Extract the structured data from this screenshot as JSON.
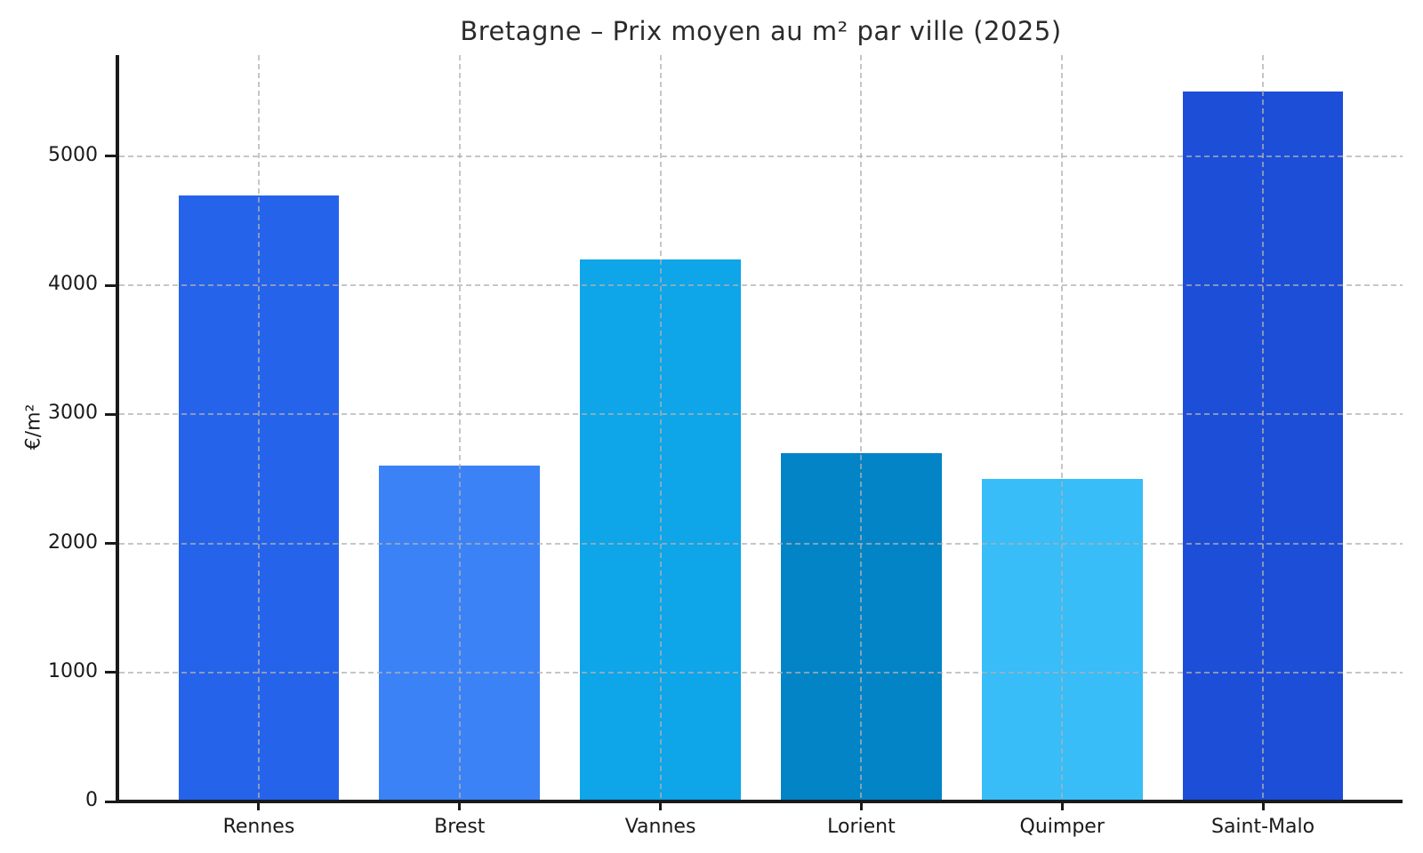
{
  "title": "Bretagne – Prix moyen au m² par ville (2025)",
  "chart_data": {
    "type": "bar",
    "title": "Bretagne – Prix moyen au m² par ville (2025)",
    "xlabel": "",
    "ylabel": "€/m²",
    "categories": [
      "Rennes",
      "Brest",
      "Vannes",
      "Lorient",
      "Quimper",
      "Saint-Malo"
    ],
    "values": [
      4700,
      2600,
      4200,
      2700,
      2500,
      5500
    ],
    "bar_colors": [
      "#2563eb",
      "#3b82f6",
      "#0ea5e9",
      "#0284c7",
      "#38bdf8",
      "#1d4ed8"
    ],
    "yticks": [
      0,
      1000,
      2000,
      3000,
      4000,
      5000
    ],
    "ylim": [
      0,
      5785
    ],
    "legend": "none",
    "grid": "dashed both-axes drawn over bars",
    "grid_color": "#c7c7c7",
    "background": "#ffffff",
    "spine_color": "#1a1a1a"
  }
}
